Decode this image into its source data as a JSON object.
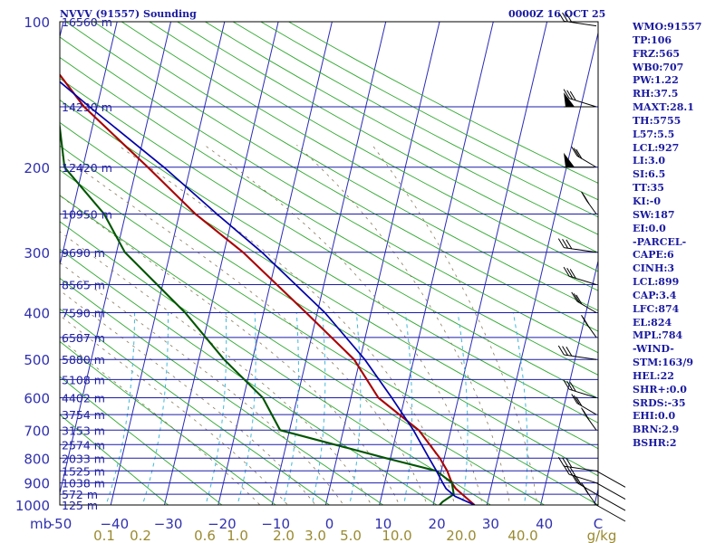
{
  "header": {
    "station": "NVVV (91557) Sounding",
    "time": "0000Z 16 OCT 25"
  },
  "stats": [
    "WMO:91557",
    "TP:106",
    "FRZ:565",
    "WB0:707",
    "PW:1.22",
    "RH:37.5",
    "MAXT:28.1",
    "TH:5755",
    "L57:5.5",
    "LCL:927",
    "LI:3.0",
    "SI:6.5",
    "TT:35",
    "KI:-0",
    "SW:187",
    "EI:0.0",
    "-PARCEL-",
    "CAPE:6",
    "CINH:3",
    "LCL:899",
    "CAP:3.4",
    "LFC:874",
    "EL:824",
    "MPL:784",
    "-WIND-",
    "STM:163/9",
    "HEL:22",
    "SHR+:0.0",
    "SRDS:-35",
    "EHI:0.0",
    "BRN:2.9",
    "BSHR:2"
  ],
  "chart_data": {
    "type": "line",
    "title": "NVVV (91557) Sounding",
    "subtitle": "0000Z 16 OCT 25",
    "xlabel": "",
    "ylabel": "mb",
    "y_scale": "log",
    "ylim": [
      1000,
      100
    ],
    "xlim": [
      -50,
      50
    ],
    "pressure_ticks": [
      {
        "p": 100,
        "label": "100"
      },
      {
        "p": 200,
        "label": "200"
      },
      {
        "p": 300,
        "label": "300"
      },
      {
        "p": 400,
        "label": "400"
      },
      {
        "p": 500,
        "label": "500"
      },
      {
        "p": 600,
        "label": "600"
      },
      {
        "p": 700,
        "label": "700"
      },
      {
        "p": 800,
        "label": "800"
      },
      {
        "p": 900,
        "label": "900"
      },
      {
        "p": 1000,
        "label": "1000"
      }
    ],
    "y_axis_unit": "mb",
    "temp_ticks": [
      "-50",
      "−40",
      "−30",
      "−20",
      "−10",
      "0",
      "10",
      "20",
      "30",
      "40",
      "C"
    ],
    "mixing_ratio_ticks": [
      {
        "w": 0.1,
        "label": "0.1"
      },
      {
        "w": 0.2,
        "label": "0.2"
      },
      {
        "w": 0.6,
        "label": "0.6"
      },
      {
        "w": 1.0,
        "label": "1.0"
      },
      {
        "w": 2.0,
        "label": "2.0"
      },
      {
        "w": 3.0,
        "label": "3.0"
      },
      {
        "w": 5.0,
        "label": "5.0"
      },
      {
        "w": 10.0,
        "label": "10.0"
      },
      {
        "w": 20.0,
        "label": "20.0"
      },
      {
        "w": 40.0,
        "label": "40.0"
      }
    ],
    "mixing_ratio_unit": "g/kg",
    "height_labels": [
      {
        "p": 100,
        "label": "16560 m"
      },
      {
        "p": 150,
        "label": "14230 m"
      },
      {
        "p": 200,
        "label": "12420 m"
      },
      {
        "p": 250,
        "label": "10950 m"
      },
      {
        "p": 300,
        "label": "9690 m"
      },
      {
        "p": 350,
        "label": "8565 m"
      },
      {
        "p": 400,
        "label": "7590 m"
      },
      {
        "p": 450,
        "label": "6587 m"
      },
      {
        "p": 500,
        "label": "5880 m"
      },
      {
        "p": 550,
        "label": "5108 m"
      },
      {
        "p": 600,
        "label": "4402 m"
      },
      {
        "p": 650,
        "label": "3754 m"
      },
      {
        "p": 700,
        "label": "3153 m"
      },
      {
        "p": 750,
        "label": "2574 m"
      },
      {
        "p": 800,
        "label": "2033 m"
      },
      {
        "p": 850,
        "label": "1525 m"
      },
      {
        "p": 900,
        "label": "1038 m"
      },
      {
        "p": 950,
        "label": "572 m"
      },
      {
        "p": 1000,
        "label": "125 m"
      }
    ],
    "series": [
      {
        "name": "Temperature",
        "color": "#aa0000",
        "points": [
          {
            "p": 1000,
            "t": 27.0
          },
          {
            "p": 925,
            "t": 21.8
          },
          {
            "p": 900,
            "t": 20.5
          },
          {
            "p": 850,
            "t": 18.5
          },
          {
            "p": 800,
            "t": 16.0
          },
          {
            "p": 700,
            "t": 9.8
          },
          {
            "p": 600,
            "t": 0.0
          },
          {
            "p": 500,
            "t": -6.8
          },
          {
            "p": 400,
            "t": -18.0
          },
          {
            "p": 300,
            "t": -32.0
          },
          {
            "p": 250,
            "t": -42.0
          },
          {
            "p": 200,
            "t": -52.0
          },
          {
            "p": 150,
            "t": -65.0
          },
          {
            "p": 125,
            "t": -71.0
          },
          {
            "p": 106,
            "t": -75.0
          },
          {
            "p": 100,
            "t": -75.0
          }
        ]
      },
      {
        "name": "Dewpoint",
        "color": "#005500",
        "points": [
          {
            "p": 1000,
            "t": 20.5
          },
          {
            "p": 985,
            "t": 20.7
          },
          {
            "p": 950,
            "t": 22.0
          },
          {
            "p": 900,
            "t": 20.5
          },
          {
            "p": 850,
            "t": 16.5
          },
          {
            "p": 800,
            "t": 6.0
          },
          {
            "p": 700,
            "t": -16.0
          },
          {
            "p": 600,
            "t": -21.5
          },
          {
            "p": 500,
            "t": -31.0
          },
          {
            "p": 400,
            "t": -40.5
          },
          {
            "p": 300,
            "t": -54.0
          },
          {
            "p": 250,
            "t": -59.0
          },
          {
            "p": 200,
            "t": -67.5
          },
          {
            "p": 150,
            "t": -70.0
          },
          {
            "p": 125,
            "t": -75.0
          },
          {
            "p": 106,
            "t": -79.0
          },
          {
            "p": 100,
            "t": -82.0
          }
        ]
      },
      {
        "name": "Parcel",
        "color": "#0000aa",
        "points": [
          {
            "p": 1000,
            "t": 27.0
          },
          {
            "p": 960,
            "t": 22.5
          },
          {
            "p": 925,
            "t": 20.0
          },
          {
            "p": 900,
            "t": 18.8
          },
          {
            "p": 850,
            "t": 16.5
          },
          {
            "p": 800,
            "t": 14.0
          },
          {
            "p": 700,
            "t": 8.8
          },
          {
            "p": 600,
            "t": 2.5
          },
          {
            "p": 500,
            "t": -4.8
          },
          {
            "p": 400,
            "t": -14.5
          },
          {
            "p": 300,
            "t": -28.5
          },
          {
            "p": 250,
            "t": -38.0
          },
          {
            "p": 200,
            "t": -49.0
          },
          {
            "p": 150,
            "t": -64.0
          },
          {
            "p": 125,
            "t": -73.0
          },
          {
            "p": 113,
            "t": -77.0
          }
        ]
      }
    ],
    "legend": "none",
    "grid": true
  }
}
